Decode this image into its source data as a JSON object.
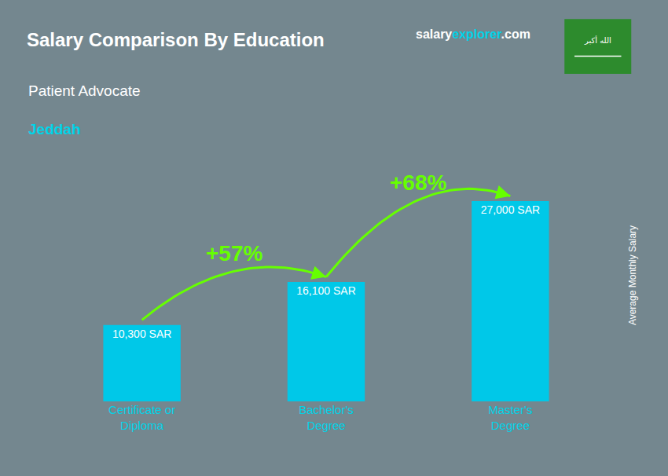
{
  "chart_data": {
    "type": "bar",
    "title": "Salary Comparison By Education",
    "subtitle": "Patient Advocate",
    "categories": [
      "Certificate or\nDiploma",
      "Bachelor's\nDegree",
      "Master's\nDegree"
    ],
    "values": [
      10300,
      16100,
      27000
    ],
    "value_labels": [
      "10,300 SAR",
      "16,100 SAR",
      "27,000 SAR"
    ],
    "data_labels": true,
    "color": "#00c8e8",
    "ylabel": "Average Monthly Salary",
    "ylim": [
      0,
      34000
    ],
    "yticks": [],
    "tick_labels": "x",
    "grid": false,
    "annotations": [
      {
        "text": "+57%",
        "color": "#66ff00"
      },
      {
        "text": "+68%",
        "color": "#66ff00"
      },
      {
        "text": "Jeddah",
        "color": "#00d4e8"
      },
      {
        "text": "salary",
        "color": "#ffffff"
      },
      {
        "text": "explorer",
        "color": "#00d4e8"
      },
      {
        "text": ".com",
        "color": "#ffffff"
      },
      {
        "text": "الله أكبر",
        "color": "#ffffff"
      }
    ]
  }
}
